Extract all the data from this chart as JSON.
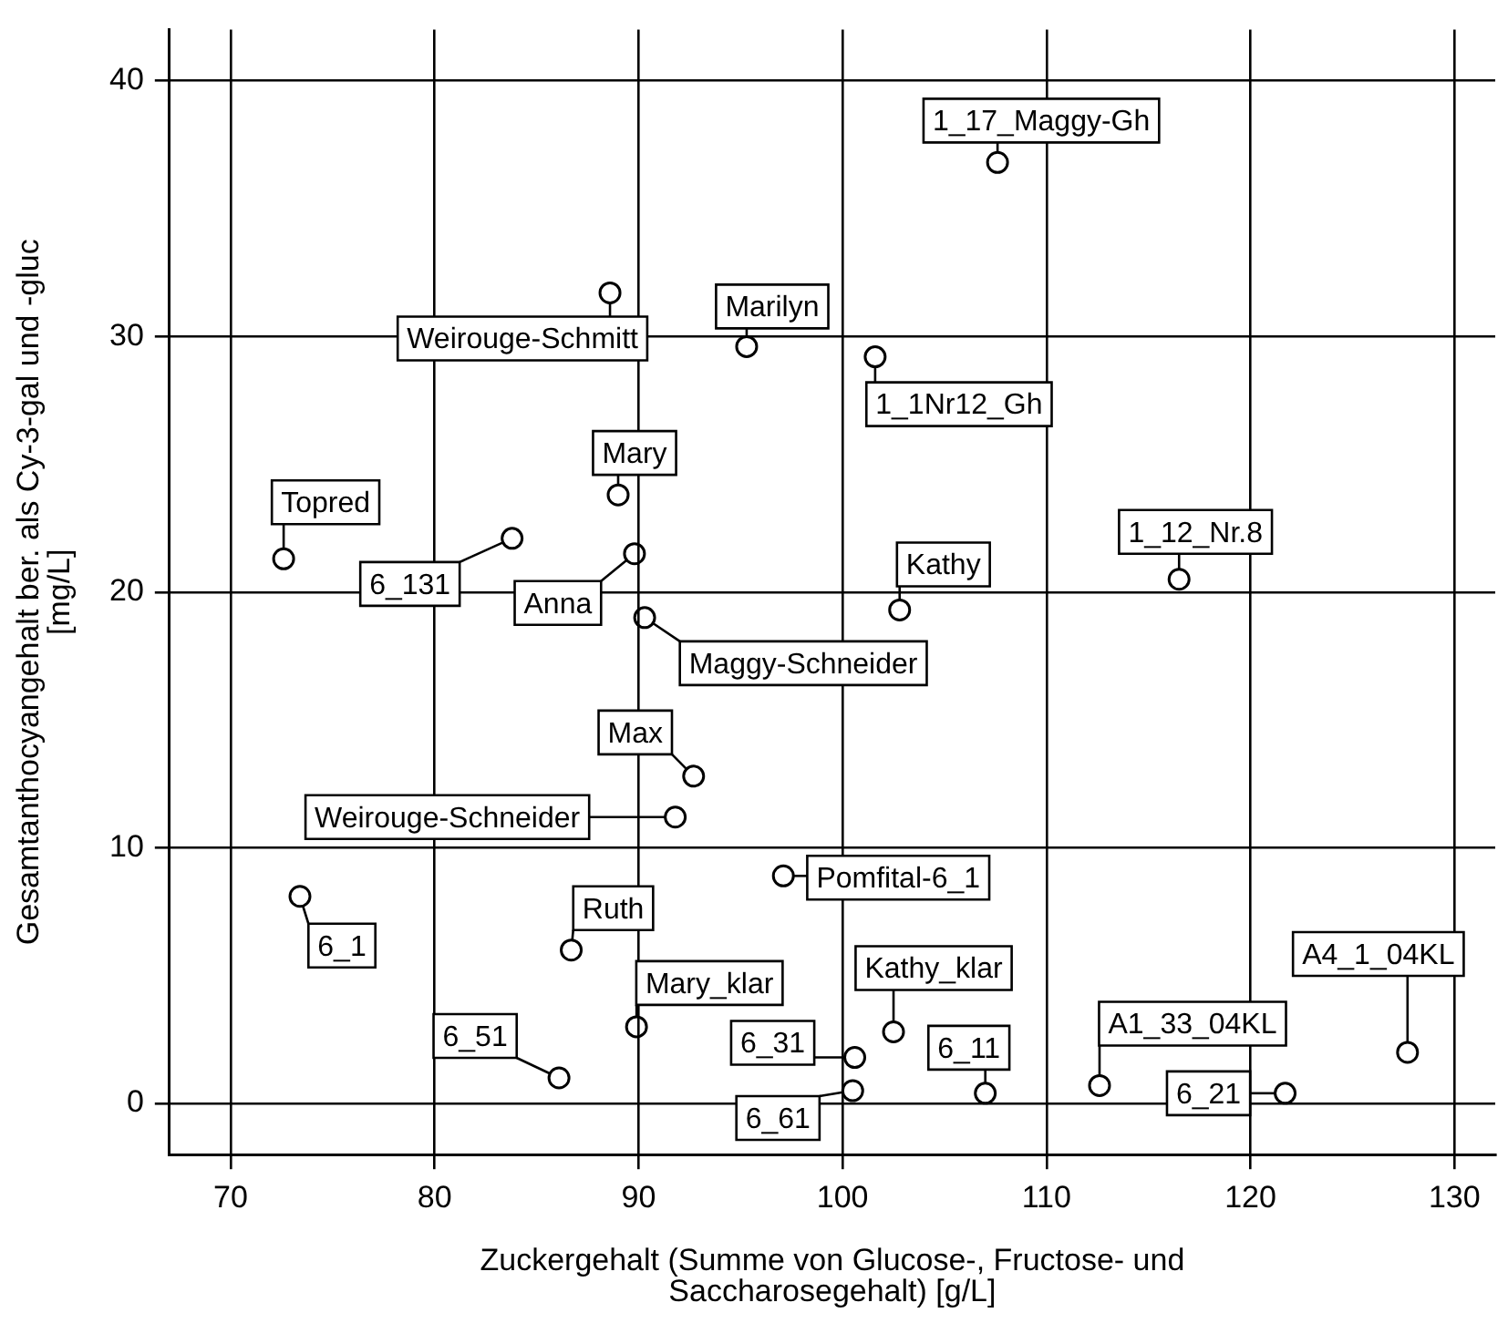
{
  "chart_data": {
    "type": "scatter",
    "xlabel": "Zuckergehalt (Summe von Glucose-, Fructose- und Saccharosegehalt) [g/L]",
    "ylabel": "Gesamtanthocyangehalt ber. als Cy-3-gal und -gluc [mg/L]",
    "xlim": [
      67,
      132
    ],
    "xticks": [
      70,
      80,
      90,
      100,
      110,
      120,
      130
    ],
    "ylim": [
      -2,
      42
    ],
    "yticks": [
      0,
      10,
      20,
      30,
      40
    ],
    "grid": true,
    "marker": "circle",
    "legend": false,
    "series": [
      {
        "color": "#000000",
        "x": [
          107.6,
          88.6,
          95.3,
          101.6,
          89.0,
          72.6,
          83.8,
          89.8,
          90.3,
          102.8,
          116.5,
          92.7,
          91.8,
          97.1,
          73.4,
          86.7,
          89.9,
          102.5,
          100.6,
          100.5,
          86.1,
          107.0,
          112.6,
          121.7,
          127.7
        ],
        "values": [
          36.8,
          31.7,
          29.6,
          29.2,
          23.8,
          21.3,
          22.1,
          21.5,
          19.0,
          19.3,
          20.5,
          12.8,
          11.2,
          8.9,
          8.1,
          6.0,
          3.0,
          2.8,
          1.8,
          0.5,
          1.0,
          0.4,
          0.7,
          0.4,
          2.0
        ],
        "value_labels": [
          "1_17_Maggy-Gh",
          "Weirouge-Schmitt",
          "Marilyn",
          "1_1Nr12_Gh",
          "Mary",
          "Topred",
          "6_131",
          "Anna",
          "Maggy-Schneider",
          "Kathy",
          "1_12_Nr.8",
          "Max",
          "Weirouge-Schneider",
          "Pomfital-6_1",
          "6_1",
          "Ruth",
          "Mary_klar",
          "Kathy_klar",
          "6_31",
          "6_61",
          "6_51",
          "6_11",
          "A1_33_04KL",
          "6_21",
          "A4_1_04KL"
        ]
      }
    ]
  }
}
